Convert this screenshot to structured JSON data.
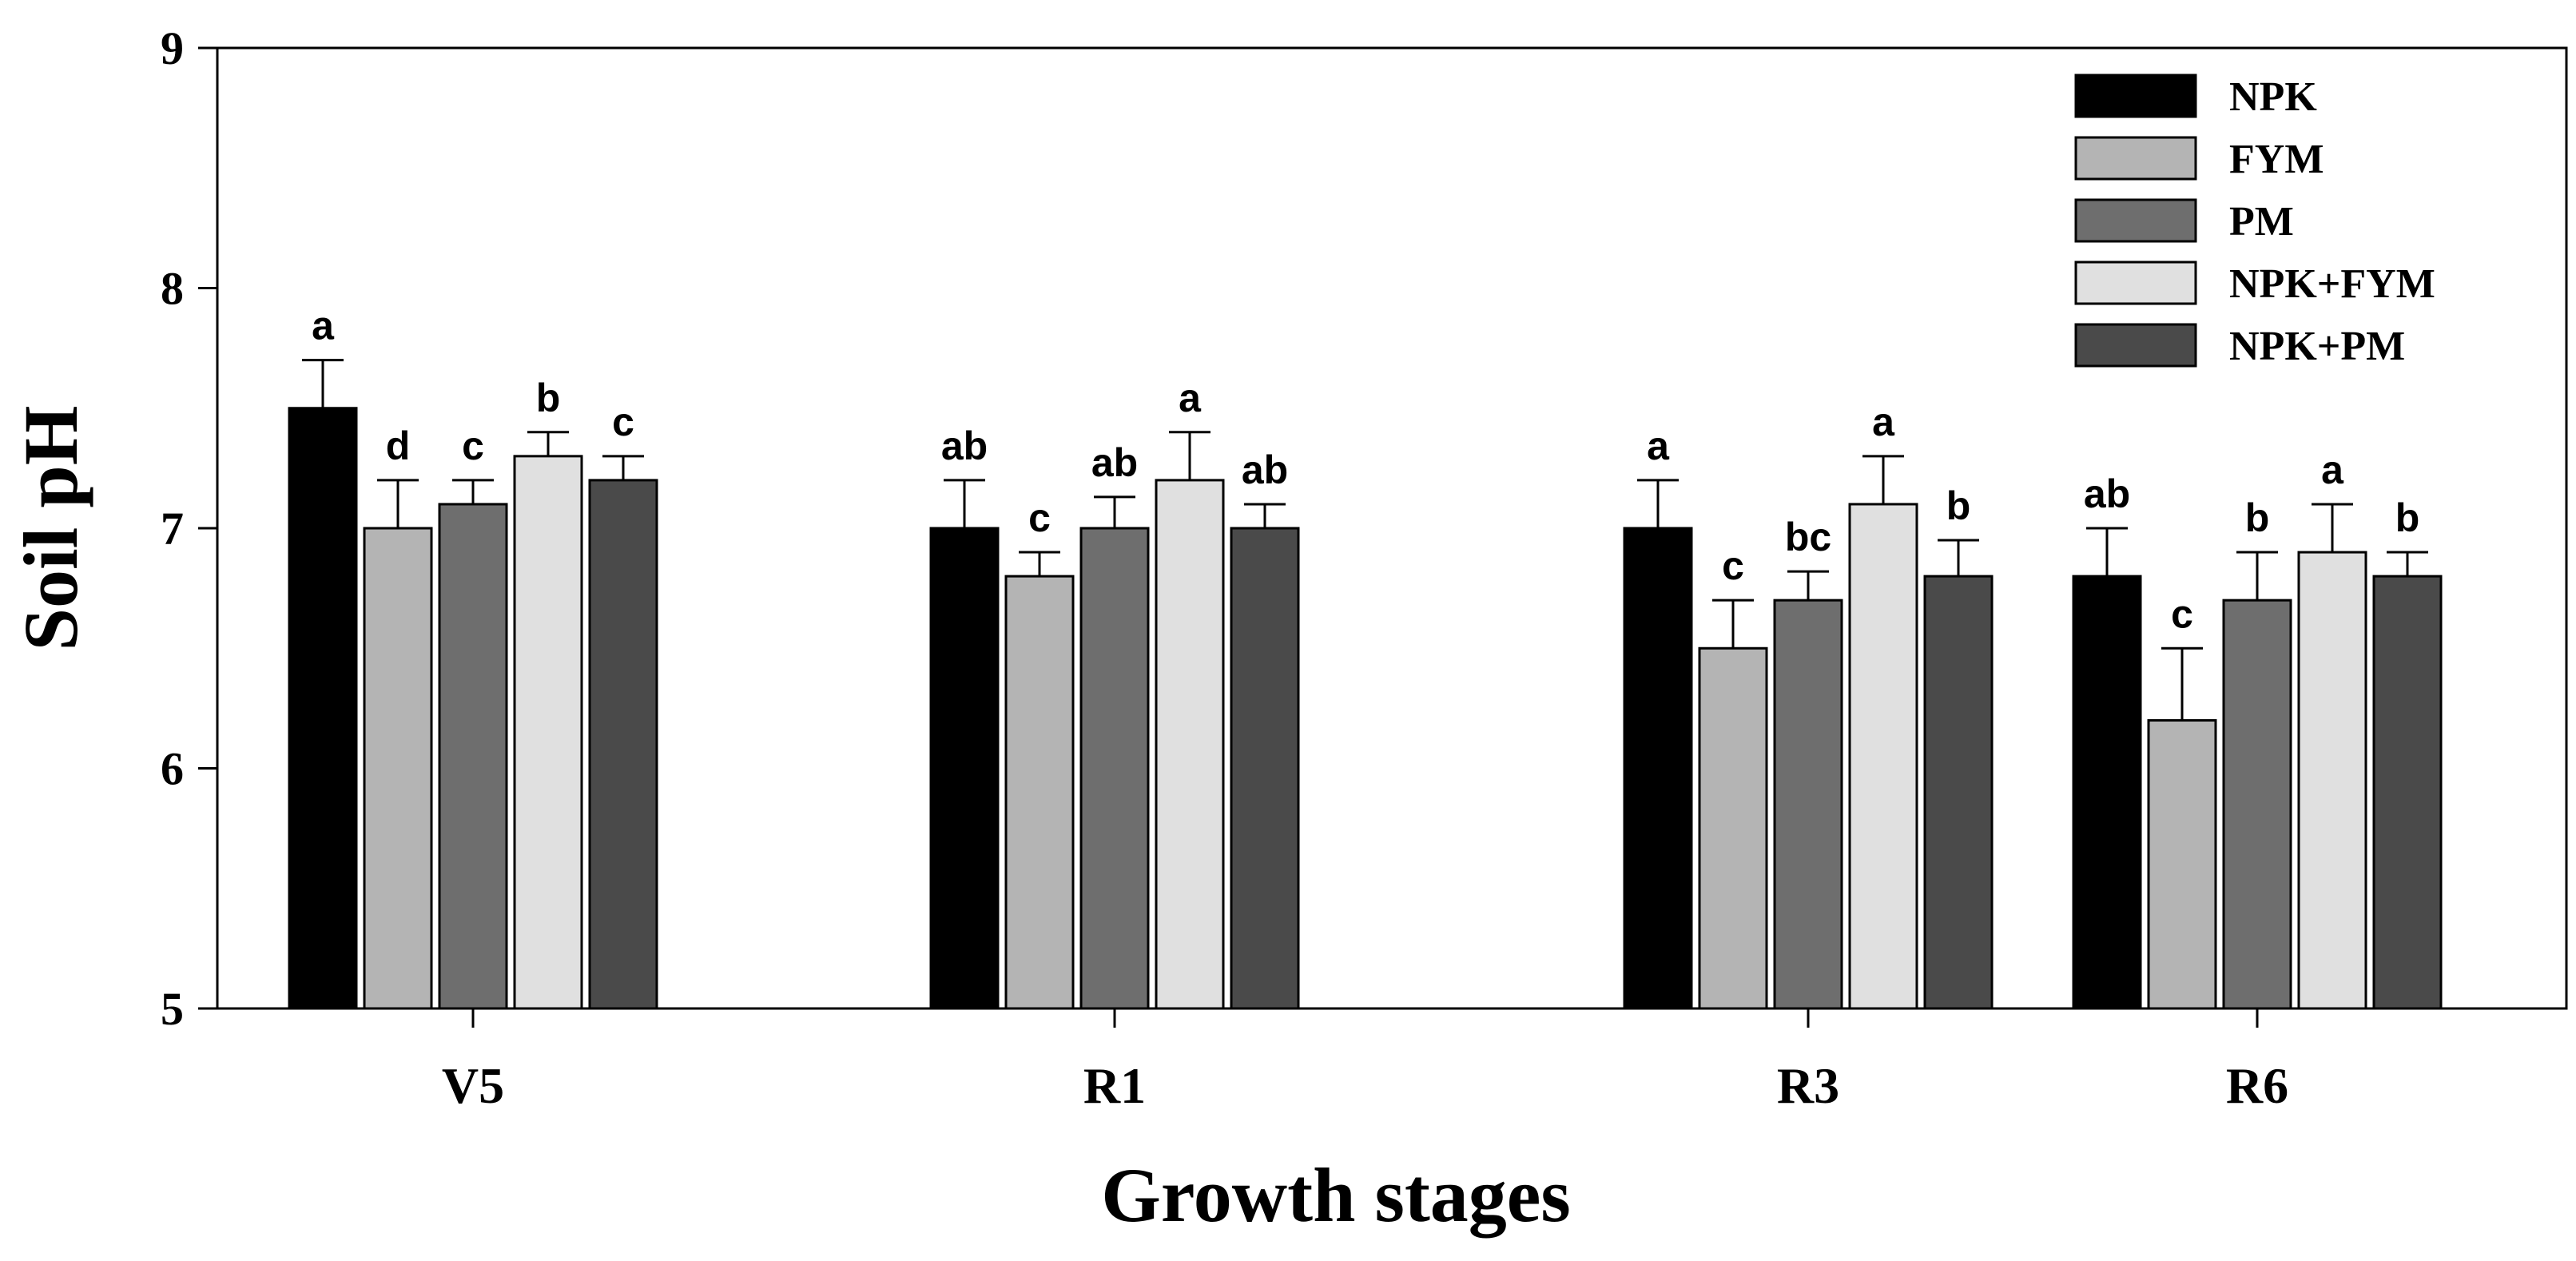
{
  "chart_data": {
    "type": "bar",
    "title": "",
    "xlabel": "Growth stages",
    "ylabel": "Soil pH",
    "ylim": [
      5,
      9
    ],
    "yticks": [
      5,
      6,
      7,
      8,
      9
    ],
    "grid": false,
    "legend_position": "top-right",
    "categories": [
      "V5",
      "R1",
      "R3",
      "R6"
    ],
    "series": [
      {
        "name": "NPK",
        "color": "#000000",
        "values": [
          7.5,
          7.0,
          7.0,
          6.8
        ],
        "errors": [
          0.2,
          0.2,
          0.2,
          0.2
        ],
        "letters": [
          "a",
          "ab",
          "a",
          "ab"
        ]
      },
      {
        "name": "FYM",
        "color": "#b4b4b4",
        "values": [
          7.0,
          6.8,
          6.5,
          6.2
        ],
        "errors": [
          0.2,
          0.1,
          0.2,
          0.3
        ],
        "letters": [
          "d",
          "c",
          "c",
          "c"
        ]
      },
      {
        "name": "PM",
        "color": "#6e6e6e",
        "values": [
          7.1,
          7.0,
          6.7,
          6.7
        ],
        "errors": [
          0.1,
          0.13,
          0.12,
          0.2
        ],
        "letters": [
          "c",
          "ab",
          "bc",
          "b"
        ]
      },
      {
        "name": "NPK+FYM",
        "color": "#e0e0e0",
        "values": [
          7.3,
          7.2,
          7.1,
          6.9
        ],
        "errors": [
          0.1,
          0.2,
          0.2,
          0.2
        ],
        "letters": [
          "b",
          "a",
          "a",
          "a"
        ]
      },
      {
        "name": "NPK+PM",
        "color": "#4a4a4a",
        "values": [
          7.2,
          7.0,
          6.8,
          6.8
        ],
        "errors": [
          0.1,
          0.1,
          0.15,
          0.1
        ],
        "letters": [
          "c",
          "ab",
          "b",
          "b"
        ]
      }
    ]
  }
}
